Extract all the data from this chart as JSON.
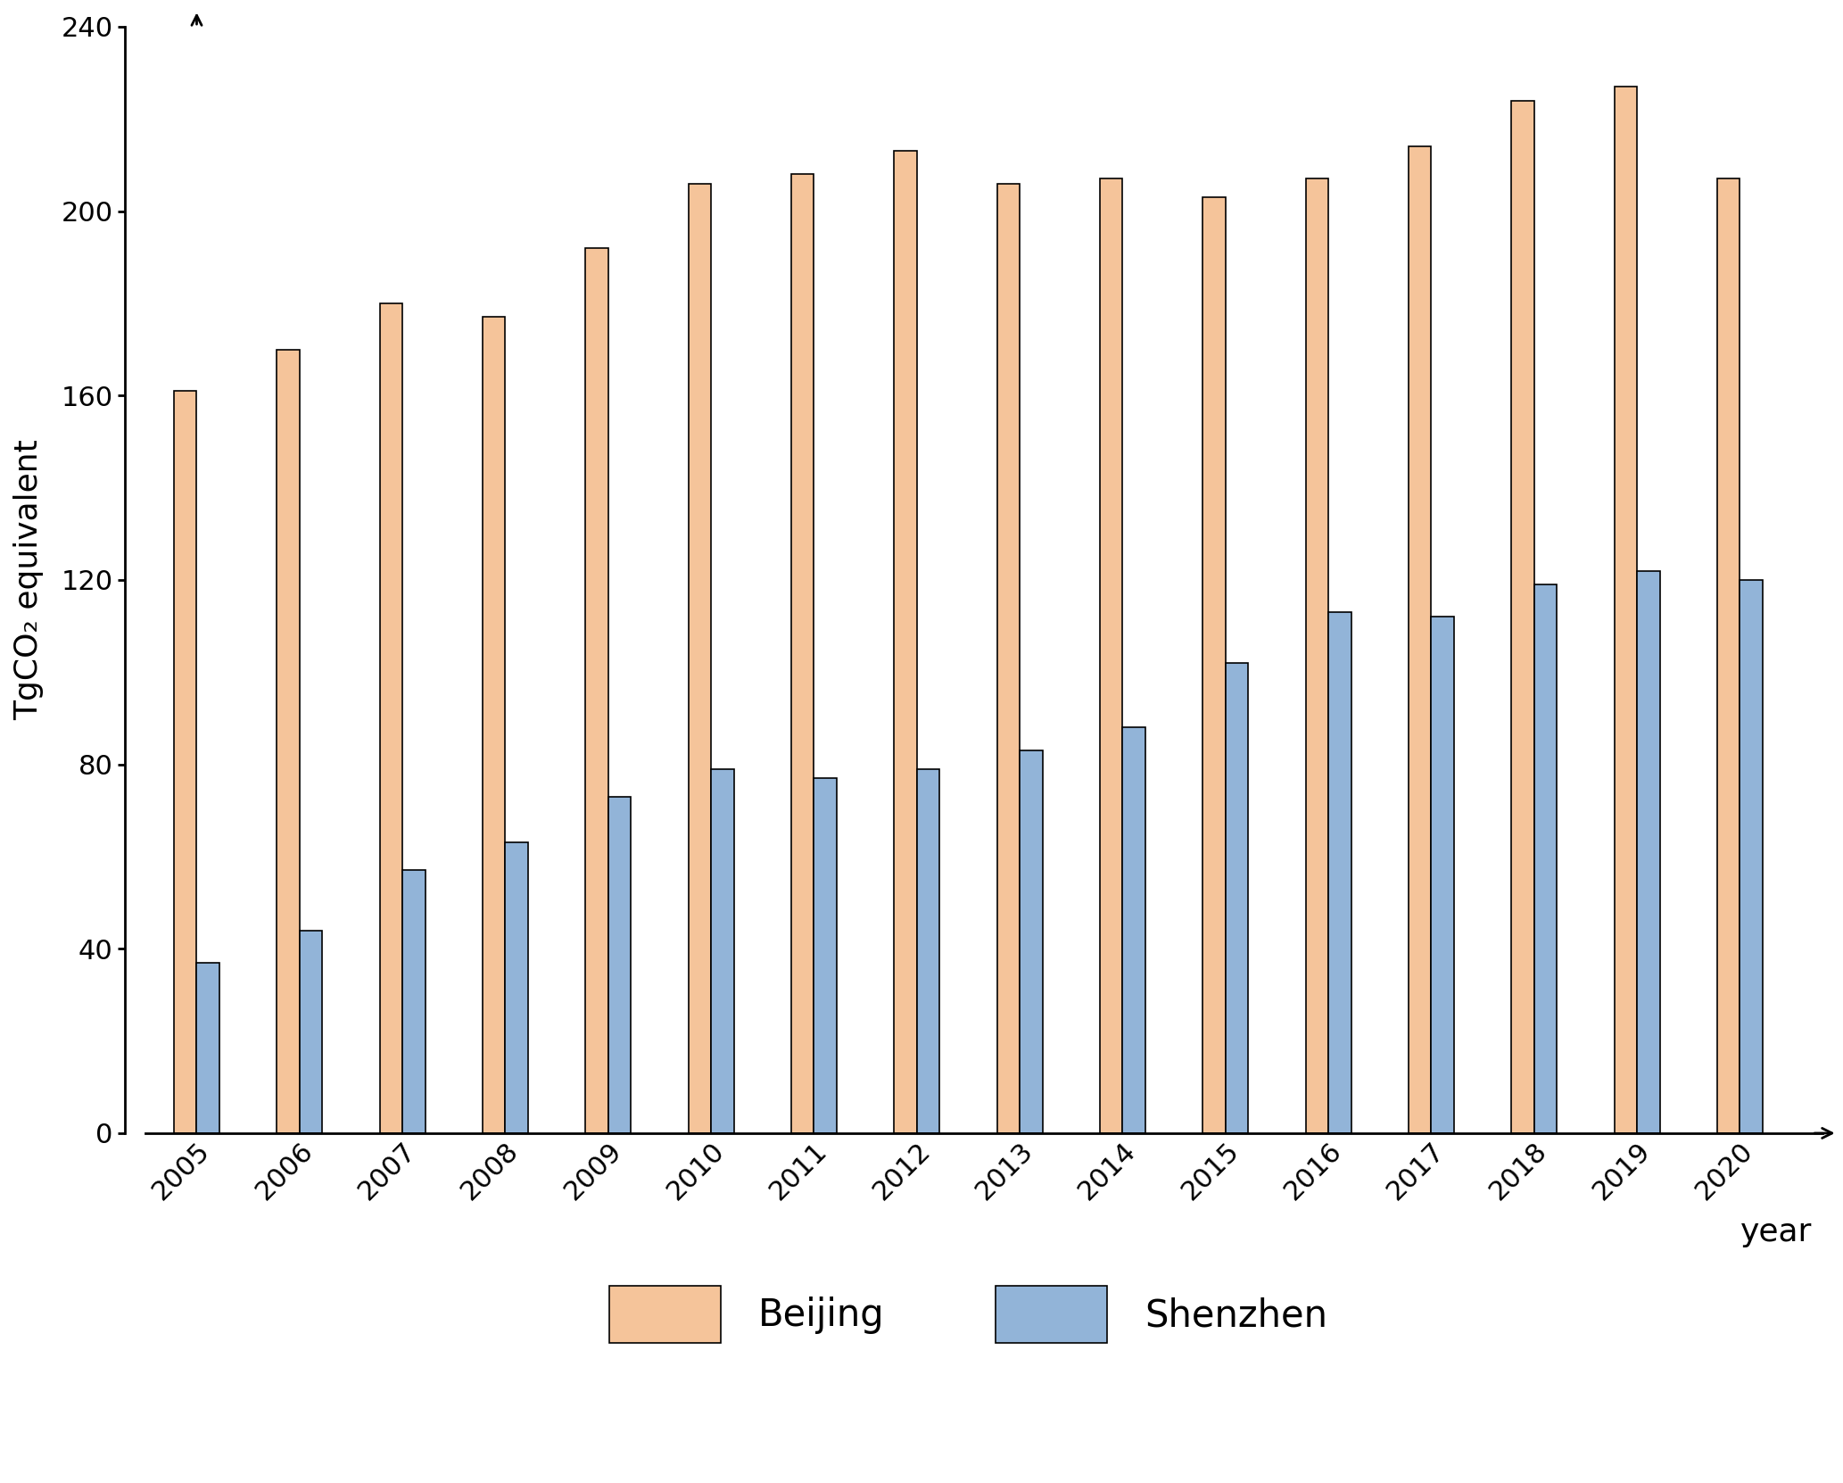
{
  "years": [
    2005,
    2006,
    2007,
    2008,
    2009,
    2010,
    2011,
    2012,
    2013,
    2014,
    2015,
    2016,
    2017,
    2018,
    2019,
    2020
  ],
  "beijing": [
    161,
    170,
    180,
    177,
    192,
    206,
    208,
    213,
    206,
    207,
    203,
    207,
    214,
    224,
    227,
    207
  ],
  "shenzhen": [
    37,
    44,
    57,
    63,
    73,
    79,
    77,
    79,
    83,
    88,
    102,
    113,
    112,
    119,
    122,
    120
  ],
  "beijing_color": "#F5C49A",
  "shenzhen_color": "#92B4D8",
  "bar_edge_color": "#000000",
  "ylabel": "TgCO₂ equivalent",
  "xlabel": "year",
  "ylim": [
    0,
    240
  ],
  "yticks": [
    0,
    40,
    80,
    120,
    160,
    200,
    240
  ],
  "legend_labels": [
    "Beijing",
    "Shenzhen"
  ],
  "figsize": [
    20.66,
    16.62
  ],
  "dpi": 100
}
